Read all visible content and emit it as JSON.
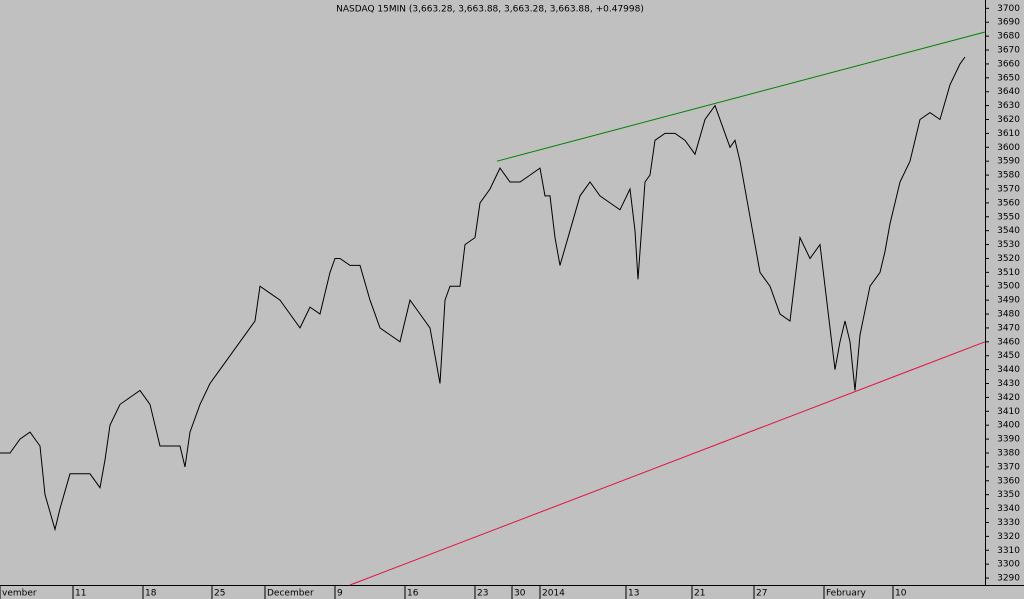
{
  "chart_data": {
    "type": "line",
    "title": "NASDAQ 15MIN (3,663.28, 3,663.88, 3,663.28, 3,663.88, +0.47998)",
    "color": "#000000",
    "x": [
      0,
      10,
      20,
      30,
      40,
      45,
      55,
      60,
      70,
      80,
      90,
      100,
      105,
      110,
      120,
      130,
      140,
      150,
      160,
      170,
      180,
      185,
      190,
      200,
      210,
      220,
      230,
      240,
      250,
      255,
      260,
      270,
      280,
      290,
      300,
      310,
      320,
      330,
      335,
      340,
      350,
      360,
      370,
      380,
      390,
      400,
      410,
      420,
      430,
      440,
      445,
      450,
      460,
      465,
      475,
      480,
      490,
      500,
      510,
      520,
      530,
      540,
      545,
      550,
      555,
      560,
      570,
      580,
      590,
      600,
      610,
      620,
      630,
      635,
      638,
      645,
      650,
      655,
      665,
      675,
      685,
      695,
      705,
      715,
      725,
      730,
      735,
      740,
      750,
      760,
      770,
      780,
      790,
      800,
      810,
      820,
      830,
      835,
      840,
      845,
      850,
      855,
      860,
      870,
      880,
      885,
      890,
      900,
      910,
      920,
      930,
      940,
      950,
      960,
      965
    ],
    "values": [
      3380,
      3380,
      3390,
      3395,
      3385,
      3350,
      3325,
      3340,
      3365,
      3365,
      3365,
      3355,
      3375,
      3400,
      3415,
      3420,
      3425,
      3415,
      3385,
      3385,
      3385,
      3370,
      3395,
      3415,
      3430,
      3440,
      3450,
      3460,
      3470,
      3475,
      3500,
      3495,
      3490,
      3480,
      3470,
      3485,
      3480,
      3510,
      3520,
      3520,
      3515,
      3515,
      3490,
      3470,
      3465,
      3460,
      3490,
      3480,
      3470,
      3430,
      3490,
      3500,
      3500,
      3530,
      3535,
      3560,
      3570,
      3585,
      3575,
      3575,
      3580,
      3585,
      3565,
      3565,
      3535,
      3515,
      3540,
      3565,
      3575,
      3565,
      3560,
      3555,
      3570,
      3540,
      3505,
      3575,
      3580,
      3605,
      3610,
      3610,
      3605,
      3595,
      3620,
      3630,
      3610,
      3600,
      3605,
      3590,
      3550,
      3510,
      3500,
      3480,
      3475,
      3535,
      3520,
      3530,
      3470,
      3440,
      3460,
      3475,
      3460,
      3425,
      3465,
      3500,
      3510,
      3525,
      3545,
      3575,
      3590,
      3620,
      3625,
      3620,
      3645,
      3660,
      3665
    ],
    "trendlines": [
      {
        "color": "#008000",
        "x": [
          497,
          985
        ],
        "y": [
          3590,
          3683
        ]
      },
      {
        "color": "#e0103a",
        "x": [
          350,
          985
        ],
        "y": [
          3285,
          3460
        ]
      }
    ],
    "xlim": [
      0,
      985
    ],
    "ylim": [
      3285,
      3706
    ],
    "xticks": [
      {
        "value": 0,
        "label": "vember"
      },
      {
        "value": 73,
        "label": "11"
      },
      {
        "value": 143,
        "label": "18"
      },
      {
        "value": 212,
        "label": "25"
      },
      {
        "value": 265,
        "label": "December"
      },
      {
        "value": 335,
        "label": "9"
      },
      {
        "value": 405,
        "label": "16"
      },
      {
        "value": 475,
        "label": "23"
      },
      {
        "value": 512,
        "label": "30"
      },
      {
        "value": 540,
        "label": "2014"
      },
      {
        "value": 626,
        "label": "13"
      },
      {
        "value": 692,
        "label": "21"
      },
      {
        "value": 754,
        "label": "27"
      },
      {
        "value": 824,
        "label": "February"
      },
      {
        "value": 893,
        "label": "10"
      }
    ],
    "yticks": [
      3290,
      3300,
      3310,
      3320,
      3330,
      3340,
      3350,
      3360,
      3370,
      3380,
      3390,
      3400,
      3410,
      3420,
      3430,
      3440,
      3450,
      3460,
      3470,
      3480,
      3490,
      3500,
      3510,
      3520,
      3530,
      3540,
      3550,
      3560,
      3570,
      3580,
      3590,
      3600,
      3610,
      3620,
      3630,
      3640,
      3650,
      3660,
      3670,
      3680,
      3690,
      3700
    ]
  }
}
